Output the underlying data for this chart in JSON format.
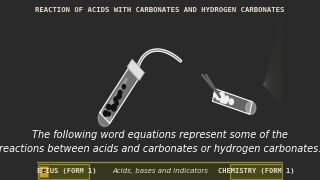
{
  "title": "REACTION OF ACIDS WITH CARBONATES AND HYDROGEN CARBONATES",
  "body_text": "The following word equations represent some of the\nreactions between acids and carbonates or hydrogen carbonates.",
  "footer_left": "ENIUS (FORM 1)",
  "footer_center": "Acids, bases and indicators",
  "footer_right": "CHEMISTRY (FORM 1)",
  "bg_color": "#2a2a2a",
  "title_color": "#e8e0c8",
  "body_color": "#ffffff",
  "footer_bg": "#3a3a2a",
  "footer_border": "#8a8a40",
  "footer_text_color": "#e8e0c8",
  "title_fontsize": 5.2,
  "body_fontsize": 7.0,
  "footer_fontsize": 5.0
}
